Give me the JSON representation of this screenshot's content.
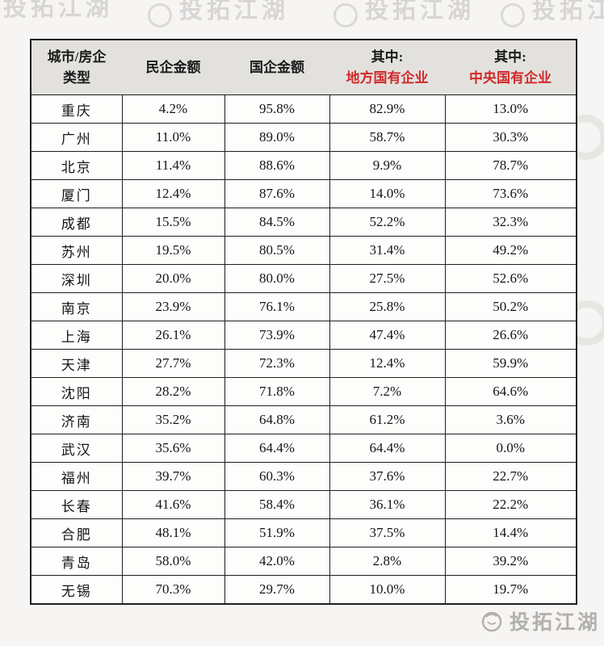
{
  "colors": {
    "accent_red": "#d02a2a",
    "header_background": "#e3e1de",
    "border_black": "#1f1f1f",
    "watermark_gray": "#b2b0ae"
  },
  "watermark": {
    "text": "投拓江湖",
    "logo": "scribble-circle-icon"
  },
  "chart_data": {
    "type": "table",
    "title": "",
    "columns": [
      {
        "lines": [
          {
            "text": "城市/房企",
            "red": false
          },
          {
            "text": "类型",
            "red": false
          }
        ]
      },
      {
        "lines": [
          {
            "text": "民企金额",
            "red": false
          }
        ]
      },
      {
        "lines": [
          {
            "text": "国企金额",
            "red": false
          }
        ]
      },
      {
        "lines": [
          {
            "text": "其中:",
            "red": false
          },
          {
            "text": "地方国有企业",
            "red": true
          }
        ]
      },
      {
        "lines": [
          {
            "text": "其中:",
            "red": false
          },
          {
            "text": "中央国有企业",
            "red": true
          }
        ]
      }
    ],
    "rows": [
      [
        "重庆",
        "4.2%",
        "95.8%",
        "82.9%",
        "13.0%"
      ],
      [
        "广州",
        "11.0%",
        "89.0%",
        "58.7%",
        "30.3%"
      ],
      [
        "北京",
        "11.4%",
        "88.6%",
        "9.9%",
        "78.7%"
      ],
      [
        "厦门",
        "12.4%",
        "87.6%",
        "14.0%",
        "73.6%"
      ],
      [
        "成都",
        "15.5%",
        "84.5%",
        "52.2%",
        "32.3%"
      ],
      [
        "苏州",
        "19.5%",
        "80.5%",
        "31.4%",
        "49.2%"
      ],
      [
        "深圳",
        "20.0%",
        "80.0%",
        "27.5%",
        "52.6%"
      ],
      [
        "南京",
        "23.9%",
        "76.1%",
        "25.8%",
        "50.2%"
      ],
      [
        "上海",
        "26.1%",
        "73.9%",
        "47.4%",
        "26.6%"
      ],
      [
        "天津",
        "27.7%",
        "72.3%",
        "12.4%",
        "59.9%"
      ],
      [
        "沈阳",
        "28.2%",
        "71.8%",
        "7.2%",
        "64.6%"
      ],
      [
        "济南",
        "35.2%",
        "64.8%",
        "61.2%",
        "3.6%"
      ],
      [
        "武汉",
        "35.6%",
        "64.4%",
        "64.4%",
        "0.0%"
      ],
      [
        "福州",
        "39.7%",
        "60.3%",
        "37.6%",
        "22.7%"
      ],
      [
        "长春",
        "41.6%",
        "58.4%",
        "36.1%",
        "22.2%"
      ],
      [
        "合肥",
        "48.1%",
        "51.9%",
        "37.5%",
        "14.4%"
      ],
      [
        "青岛",
        "58.0%",
        "42.0%",
        "2.8%",
        "39.2%"
      ],
      [
        "无锡",
        "70.3%",
        "29.7%",
        "10.0%",
        "19.7%"
      ]
    ]
  }
}
